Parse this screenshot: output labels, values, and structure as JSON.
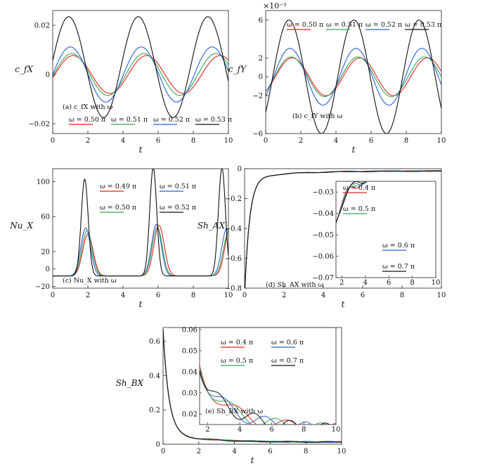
{
  "figure": {
    "exponent_label": "×10⁻³"
  },
  "chart_data": [
    {
      "id": "a",
      "type": "line",
      "caption": "(a) c_fX with ω",
      "ylabel": "c_fX",
      "xlabel": "t",
      "xlim": [
        0,
        10
      ],
      "ylim": [
        -0.024,
        0.026
      ],
      "xticks": [
        0,
        2,
        4,
        6,
        8,
        10
      ],
      "yticks": [
        -0.02,
        0,
        0.02
      ],
      "ytick_labels": [
        "−0.02",
        "0",
        "0.02"
      ],
      "legend_placement": "bottom-center",
      "series": [
        {
          "name": "ω = 0.50 π",
          "color": "#e8211e",
          "form": "sine",
          "period": 4.18,
          "amp": 0.0077,
          "phase_shift": 0.12,
          "offset": 0.0
        },
        {
          "name": "ω = 0.51 π",
          "color": "#34a853",
          "form": "sine",
          "period": 4.1,
          "amp": 0.0085,
          "phase_shift": 0.06,
          "offset": 0.0
        },
        {
          "name": "ω = 0.52 π",
          "color": "#2a5fd6",
          "form": "sine",
          "period": 4.03,
          "amp": 0.0112,
          "phase_shift": 0.0,
          "offset": 0.0
        },
        {
          "name": "ω = 0.53 π",
          "color": "#111111",
          "form": "sine",
          "period": 3.96,
          "amp": 0.0205,
          "phase_shift": -0.08,
          "offset": 0.003
        }
      ]
    },
    {
      "id": "b",
      "type": "line",
      "caption": "(b) c_fY with ω",
      "ylabel": "c_fY",
      "xlabel": "t",
      "xlim": [
        0,
        10
      ],
      "ylim": [
        -6,
        7
      ],
      "xticks": [
        0,
        2,
        4,
        6,
        8,
        10
      ],
      "yticks": [
        -6,
        -2,
        0,
        2,
        6
      ],
      "ytick_labels": [
        "−6",
        "−2",
        "0",
        "2",
        "6"
      ],
      "legend_placement": "top",
      "series": [
        {
          "name": "ω = 0.50 π",
          "color": "#e8211e",
          "form": "sine",
          "period": 3.85,
          "amp": 2.0,
          "phase_shift": 0.55,
          "offset": 0.0
        },
        {
          "name": "ω = 0.51 π",
          "color": "#34a853",
          "form": "sine",
          "period": 3.8,
          "amp": 2.1,
          "phase_shift": 0.5,
          "offset": 0.0
        },
        {
          "name": "ω = 0.52 π",
          "color": "#2a5fd6",
          "form": "sine",
          "period": 3.75,
          "amp": 3.0,
          "phase_shift": 0.45,
          "offset": 0.0
        },
        {
          "name": "ω = 0.53 π",
          "color": "#111111",
          "form": "sine",
          "period": 3.7,
          "amp": 6.0,
          "phase_shift": 0.4,
          "offset": 0.0
        }
      ]
    },
    {
      "id": "c",
      "type": "line",
      "caption": "(c) Nu_X with ω",
      "ylabel": "Nu_X",
      "xlabel": "t",
      "xlim": [
        0,
        10
      ],
      "ylim": [
        -22,
        115
      ],
      "xticks": [
        0,
        2,
        4,
        6,
        8,
        10
      ],
      "yticks": [
        -20,
        0,
        20,
        60,
        100
      ],
      "ytick_labels": [
        "−20",
        "0",
        "20",
        "60",
        "100"
      ],
      "legend_placement": "right",
      "series": [
        {
          "name": "ω = 0.49 π",
          "color": "#e8211e",
          "form": "peaks",
          "peaks": [
            [
              2.0,
              40
            ],
            [
              6.05,
              50
            ],
            [
              10.1,
              48
            ]
          ],
          "base": -8,
          "width": 0.62
        },
        {
          "name": "ω = 0.51 π",
          "color": "#2a5fd6",
          "form": "peaks",
          "peaks": [
            [
              1.88,
              47
            ],
            [
              5.9,
              51
            ],
            [
              9.9,
              46
            ]
          ],
          "base": -8,
          "width": 0.58
        },
        {
          "name": "ω = 0.50 π",
          "color": "#34a853",
          "form": "peaks",
          "peaks": [
            [
              1.95,
              44
            ],
            [
              5.95,
              48
            ],
            [
              10.0,
              42
            ]
          ],
          "base": -8,
          "width": 0.6
        },
        {
          "name": "ω = 0.52 π",
          "color": "#111111",
          "form": "peaks",
          "peaks": [
            [
              1.82,
              103
            ],
            [
              5.72,
              116
            ],
            [
              9.63,
              116
            ]
          ],
          "base": -8,
          "width": 0.42
        }
      ]
    },
    {
      "id": "d",
      "type": "line",
      "caption": "(d) Sh_AX with ω",
      "ylabel": "Sh_AX",
      "xlabel": "t",
      "xlim": [
        0,
        10
      ],
      "ylim": [
        -0.8,
        0
      ],
      "xticks": [
        0,
        2,
        4,
        6,
        8,
        10
      ],
      "yticks": [
        -0.8,
        -0.6,
        -0.4,
        -0.2,
        0
      ],
      "ytick_labels": [
        "−0.8",
        "−0.6",
        "−0.4",
        "−0.2",
        "0"
      ],
      "series": [
        {
          "name": "ω = 0.4 π",
          "color": "#e8211e",
          "form": "decay_neg",
          "start": -0.8,
          "end": -0.015,
          "tau": 0.25,
          "wave_amp": 0.0025,
          "wave_period": 2.0
        },
        {
          "name": "ω = 0.5 π",
          "color": "#34a853",
          "form": "decay_neg",
          "start": -0.8,
          "end": -0.015,
          "tau": 0.25,
          "wave_amp": 0.0025,
          "wave_period": 2.1
        },
        {
          "name": "ω = 0.6 π",
          "color": "#2a5fd6",
          "form": "decay_neg",
          "start": -0.8,
          "end": -0.015,
          "tau": 0.25,
          "wave_amp": 0.0025,
          "wave_period": 2.2
        },
        {
          "name": "ω = 0.7 π",
          "color": "#111111",
          "form": "decay_neg",
          "start": -0.8,
          "end": -0.015,
          "tau": 0.25,
          "wave_amp": 0.0025,
          "wave_period": 2.3
        }
      ],
      "inset": {
        "xlim": [
          1.5,
          10
        ],
        "ylim": [
          -0.07,
          -0.025
        ],
        "xticks": [
          2,
          4,
          6,
          8,
          10
        ],
        "yticks": [
          -0.07,
          -0.06,
          -0.05,
          -0.04,
          -0.03
        ],
        "ytick_labels": [
          "−0.07",
          "−0.06",
          "−0.05",
          "−0.04",
          "−0.03"
        ]
      }
    },
    {
      "id": "e",
      "type": "line",
      "caption": "(e) Sh_BX with ω",
      "ylabel": "Sh_BX",
      "xlabel": "t",
      "xlim": [
        0,
        10
      ],
      "ylim": [
        0,
        0.68
      ],
      "xticks": [
        0,
        2,
        4,
        6,
        8,
        10
      ],
      "yticks": [
        0,
        0.2,
        0.4,
        0.6
      ],
      "ytick_labels": [
        "0",
        "0.2",
        "0.4",
        "0.6"
      ],
      "series": [
        {
          "name": "ω = 0.4 π",
          "color": "#e8211e",
          "form": "decay_pos",
          "start": 0.62,
          "end": 0.012,
          "tau": 0.32,
          "wave_amp": 0.003,
          "wave_period": 3.1
        },
        {
          "name": "ω = 0.6 π",
          "color": "#2a5fd6",
          "form": "decay_pos",
          "start": 0.62,
          "end": 0.012,
          "tau": 0.32,
          "wave_amp": 0.003,
          "wave_period": 2.5
        },
        {
          "name": "ω = 0.5 π",
          "color": "#34a853",
          "form": "decay_pos",
          "start": 0.62,
          "end": 0.012,
          "tau": 0.32,
          "wave_amp": 0.003,
          "wave_period": 2.8
        },
        {
          "name": "ω = 0.7 π",
          "color": "#111111",
          "form": "decay_pos",
          "start": 0.62,
          "end": 0.012,
          "tau": 0.32,
          "wave_amp": 0.003,
          "wave_period": 2.2
        }
      ],
      "inset": {
        "xlim": [
          1.5,
          10
        ],
        "ylim": [
          0.015,
          0.061
        ],
        "xticks": [
          2,
          4,
          6,
          8,
          10
        ],
        "yticks": [
          0.02,
          0.03,
          0.04,
          0.05,
          0.06
        ],
        "ytick_labels": [
          "0.02",
          "0.03",
          "0.04",
          "0.05",
          "0.06"
        ]
      }
    }
  ]
}
